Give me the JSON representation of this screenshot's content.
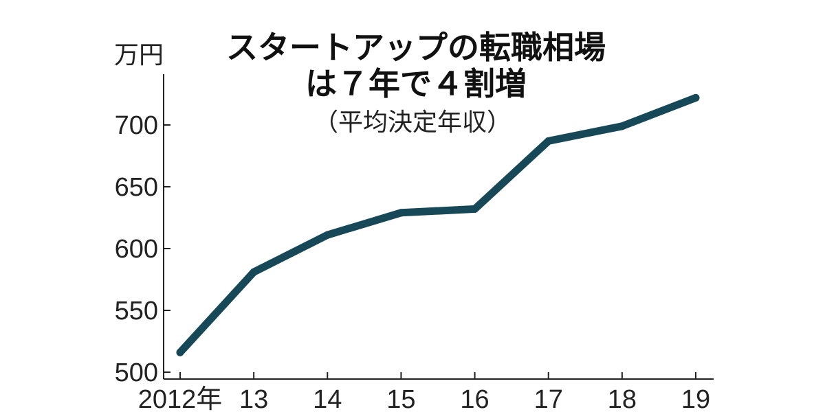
{
  "chart_data": {
    "type": "line",
    "title_line1": "スタートアップの転職相場",
    "title_line2": "は７年で４割増",
    "subtitle": "（平均決定年収）",
    "ylabel": "万円",
    "x": [
      "2012年",
      "13",
      "14",
      "15",
      "16",
      "17",
      "18",
      "19"
    ],
    "values": [
      516,
      581,
      611,
      629,
      632,
      687,
      699,
      722
    ],
    "yticks": [
      500,
      550,
      600,
      650,
      700
    ],
    "ylim": [
      500,
      730
    ],
    "grid": false,
    "line_color": "#174857"
  }
}
